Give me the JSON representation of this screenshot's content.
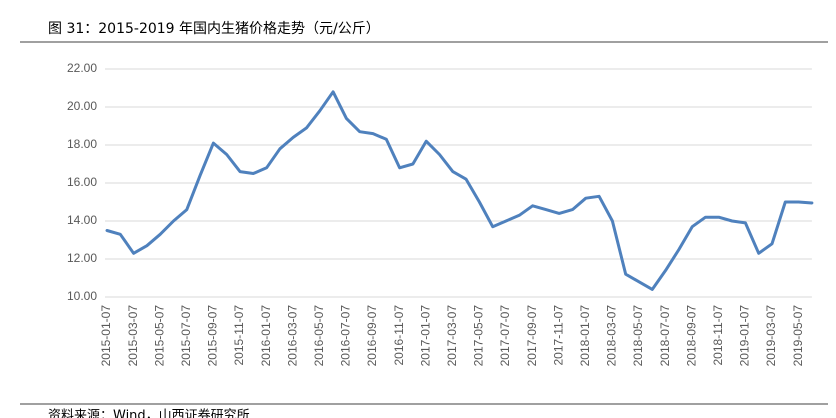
{
  "chart_data": {
    "type": "line",
    "title": "图 31：2015-2019 年国内生猪价格走势（元/公斤）",
    "source": "资料来源：Wind，山西证券研究所",
    "categories": [
      "2015-01-07",
      null,
      "2015-03-07",
      null,
      "2015-05-07",
      null,
      "2015-07-07",
      null,
      "2015-09-07",
      null,
      "2015-11-07",
      null,
      "2016-01-07",
      null,
      "2016-03-07",
      null,
      "2016-05-07",
      null,
      "2016-07-07",
      null,
      "2016-09-07",
      null,
      "2016-11-07",
      null,
      "2017-01-07",
      null,
      "2017-03-07",
      null,
      "2017-05-07",
      null,
      "2017-07-07",
      null,
      "2017-09-07",
      null,
      "2017-11-07",
      null,
      "2018-01-07",
      null,
      "2018-03-07",
      null,
      "2018-05-07",
      null,
      "2018-07-07",
      null,
      "2018-09-07",
      null,
      "2018-11-07",
      null,
      "2019-01-07",
      null,
      "2019-03-07",
      null,
      "2019-05-07",
      null
    ],
    "series": [
      {
        "name": "生猪价格",
        "color": "#4f81bd",
        "values": [
          13.5,
          13.3,
          12.3,
          12.7,
          13.3,
          14.0,
          14.6,
          16.4,
          18.1,
          17.5,
          16.6,
          16.5,
          16.8,
          17.8,
          18.4,
          18.9,
          19.8,
          20.8,
          19.4,
          18.7,
          18.6,
          18.3,
          16.8,
          17.0,
          18.2,
          17.5,
          16.6,
          16.2,
          15.0,
          13.7,
          14.0,
          14.3,
          14.8,
          14.6,
          14.4,
          14.6,
          15.2,
          15.3,
          14.0,
          11.2,
          10.8,
          10.4,
          11.4,
          12.5,
          13.7,
          14.2,
          14.2,
          14.0,
          13.9,
          12.3,
          12.8,
          15.0,
          15.0,
          14.95
        ]
      }
    ],
    "ylim": [
      10,
      22
    ],
    "yticks": [
      {
        "value": 10,
        "label": "10.00"
      },
      {
        "value": 12,
        "label": "12.00"
      },
      {
        "value": 14,
        "label": "14.00"
      },
      {
        "value": 16,
        "label": "16.00"
      },
      {
        "value": 18,
        "label": "18.00"
      },
      {
        "value": 20,
        "label": "20.00"
      },
      {
        "value": 22,
        "label": "22.00"
      }
    ],
    "grid": true
  }
}
